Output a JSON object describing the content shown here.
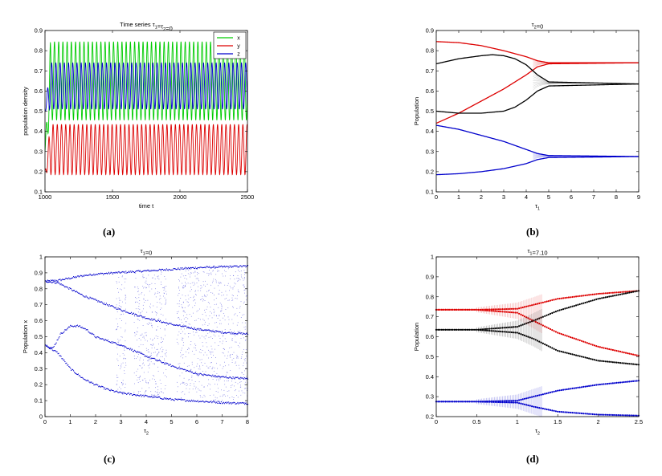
{
  "chart_data": [
    {
      "id": "a",
      "type": "line",
      "panel_label": "(a)",
      "title": "Time series  τ1=τ2=0",
      "xlabel": "time t",
      "ylabel": "population density",
      "xlim": [
        1000,
        2500
      ],
      "ylim": [
        0.1,
        0.9
      ],
      "xticks": [
        "1000",
        "1500",
        "2000",
        "2500"
      ],
      "yticks": [
        "0.1",
        "0.2",
        "0.3",
        "0.4",
        "0.5",
        "0.6",
        "0.7",
        "0.8",
        "0.9"
      ],
      "legend_position": "top-right",
      "series": [
        {
          "name": "x",
          "color": "#00cc00",
          "min": 0.455,
          "max": 0.845,
          "transient_start": 0.3,
          "cycles": 48
        },
        {
          "name": "y",
          "color": "#dd0000",
          "min": 0.185,
          "max": 0.435,
          "transient_start": 0.2,
          "cycles": 48
        },
        {
          "name": "z",
          "color": "#0000cc",
          "min": 0.51,
          "max": 0.74,
          "transient_start": 0.5,
          "cycles": 48
        }
      ]
    },
    {
      "id": "b",
      "type": "line",
      "panel_label": "(b)",
      "title": "τ2=0",
      "xlabel": "τ1",
      "ylabel": "Population",
      "xlim": [
        0,
        9
      ],
      "ylim": [
        0.1,
        0.9
      ],
      "xticks": [
        "0",
        "1",
        "2",
        "3",
        "4",
        "5",
        "6",
        "7",
        "8",
        "9"
      ],
      "yticks": [
        "0.1",
        "0.2",
        "0.3",
        "0.4",
        "0.5",
        "0.6",
        "0.7",
        "0.8",
        "0.9"
      ],
      "series": [
        {
          "name": "x max",
          "color": "#dd0000",
          "x": [
            0,
            1,
            2,
            3,
            4,
            4.5,
            5,
            9
          ],
          "y": [
            0.845,
            0.84,
            0.825,
            0.8,
            0.77,
            0.75,
            0.74,
            0.74
          ]
        },
        {
          "name": "x min",
          "color": "#dd0000",
          "x": [
            0,
            1,
            2,
            3,
            4,
            4.5,
            5,
            9
          ],
          "y": [
            0.44,
            0.49,
            0.55,
            0.61,
            0.68,
            0.72,
            0.735,
            0.74
          ]
        },
        {
          "name": "z max",
          "color": "#000000",
          "x": [
            0,
            1,
            2,
            2.5,
            3,
            3.5,
            4,
            4.5,
            5,
            9
          ],
          "y": [
            0.735,
            0.76,
            0.775,
            0.78,
            0.775,
            0.76,
            0.73,
            0.68,
            0.645,
            0.635
          ]
        },
        {
          "name": "z min",
          "color": "#000000",
          "x": [
            0,
            1,
            2,
            3,
            3.5,
            4,
            4.5,
            5,
            9
          ],
          "y": [
            0.5,
            0.49,
            0.49,
            0.5,
            0.52,
            0.555,
            0.6,
            0.625,
            0.635
          ]
        },
        {
          "name": "y max",
          "color": "#0000cc",
          "x": [
            0,
            1,
            2,
            3,
            4,
            4.5,
            5,
            9
          ],
          "y": [
            0.43,
            0.41,
            0.38,
            0.35,
            0.31,
            0.29,
            0.28,
            0.275
          ]
        },
        {
          "name": "y min",
          "color": "#0000cc",
          "x": [
            0,
            1,
            2,
            3,
            4,
            4.5,
            5,
            9
          ],
          "y": [
            0.185,
            0.19,
            0.2,
            0.215,
            0.24,
            0.26,
            0.27,
            0.275
          ]
        }
      ]
    },
    {
      "id": "c",
      "type": "scatter",
      "panel_label": "(c)",
      "title": "τ1=0",
      "xlabel": "τ2",
      "ylabel": "Population x",
      "xlim": [
        0,
        8
      ],
      "ylim": [
        0,
        1
      ],
      "xticks": [
        "0",
        "1",
        "2",
        "3",
        "4",
        "5",
        "6",
        "7",
        "8"
      ],
      "yticks": [
        "0",
        "0.1",
        "0.2",
        "0.3",
        "0.4",
        "0.5",
        "0.6",
        "0.7",
        "0.8",
        "0.9",
        "1"
      ],
      "color": "#0000cc",
      "branches": [
        {
          "x": [
            0,
            0.5,
            1,
            1.5,
            2,
            2.5,
            3,
            4,
            5,
            6,
            7,
            8
          ],
          "y": [
            0.85,
            0.855,
            0.87,
            0.885,
            0.895,
            0.9,
            0.905,
            0.915,
            0.925,
            0.935,
            0.94,
            0.945
          ]
        },
        {
          "x": [
            0,
            0.5,
            1,
            1.5,
            2,
            2.5,
            3,
            4,
            5,
            6,
            7,
            8
          ],
          "y": [
            0.85,
            0.84,
            0.8,
            0.76,
            0.73,
            0.7,
            0.67,
            0.62,
            0.58,
            0.55,
            0.53,
            0.52
          ]
        },
        {
          "x": [
            0,
            0.5,
            1,
            1.5,
            2,
            2.5,
            3,
            4,
            5,
            6,
            7,
            8
          ],
          "y": [
            0.45,
            0.4,
            0.3,
            0.24,
            0.2,
            0.17,
            0.15,
            0.13,
            0.11,
            0.1,
            0.09,
            0.085
          ]
        },
        {
          "x": [
            0,
            0.3,
            0.6,
            1,
            1.3,
            1.6,
            2,
            3,
            4,
            5,
            6,
            7,
            8
          ],
          "y": [
            0.45,
            0.43,
            0.52,
            0.57,
            0.57,
            0.55,
            0.5,
            0.45,
            0.38,
            0.32,
            0.27,
            0.25,
            0.24
          ]
        }
      ],
      "chaotic_ranges": [
        [
          2.8,
          3.2
        ],
        [
          3.5,
          4.8
        ],
        [
          5.2,
          8
        ]
      ]
    },
    {
      "id": "d",
      "type": "scatter",
      "panel_label": "(d)",
      "title": "τ1=7.10",
      "xlabel": "τ2",
      "ylabel": "Population",
      "xlim": [
        0,
        2.5
      ],
      "ylim": [
        0.2,
        1
      ],
      "xticks": [
        "0",
        "0.5",
        "1",
        "1.5",
        "2",
        "2.5"
      ],
      "yticks": [
        "0.2",
        "0.3",
        "0.4",
        "0.5",
        "0.6",
        "0.7",
        "0.8",
        "0.9",
        "1"
      ],
      "series": [
        {
          "name": "x upper",
          "color": "#dd0000",
          "x": [
            0,
            0.5,
            1,
            1.2,
            1.5,
            2,
            2.5
          ],
          "y": [
            0.735,
            0.735,
            0.74,
            0.76,
            0.79,
            0.815,
            0.83
          ]
        },
        {
          "name": "x lower",
          "color": "#dd0000",
          "x": [
            0,
            0.5,
            1,
            1.2,
            1.5,
            2,
            2.5
          ],
          "y": [
            0.735,
            0.735,
            0.72,
            0.68,
            0.62,
            0.55,
            0.505
          ]
        },
        {
          "name": "z upper",
          "color": "#000000",
          "x": [
            0,
            0.5,
            1,
            1.2,
            1.5,
            2,
            2.5
          ],
          "y": [
            0.635,
            0.635,
            0.65,
            0.68,
            0.73,
            0.79,
            0.83
          ]
        },
        {
          "name": "z lower",
          "color": "#000000",
          "x": [
            0,
            0.5,
            1,
            1.2,
            1.5,
            2,
            2.5
          ],
          "y": [
            0.635,
            0.635,
            0.62,
            0.59,
            0.53,
            0.48,
            0.46
          ]
        },
        {
          "name": "y upper",
          "color": "#0000cc",
          "x": [
            0,
            0.5,
            1,
            1.2,
            1.5,
            2,
            2.5
          ],
          "y": [
            0.275,
            0.275,
            0.28,
            0.3,
            0.33,
            0.36,
            0.38
          ]
        },
        {
          "name": "y lower",
          "color": "#0000cc",
          "x": [
            0,
            0.5,
            1,
            1.2,
            1.5,
            2,
            2.5
          ],
          "y": [
            0.275,
            0.275,
            0.27,
            0.25,
            0.225,
            0.21,
            0.205
          ]
        }
      ],
      "oscillation_range": [
        0.5,
        1.3
      ]
    }
  ]
}
